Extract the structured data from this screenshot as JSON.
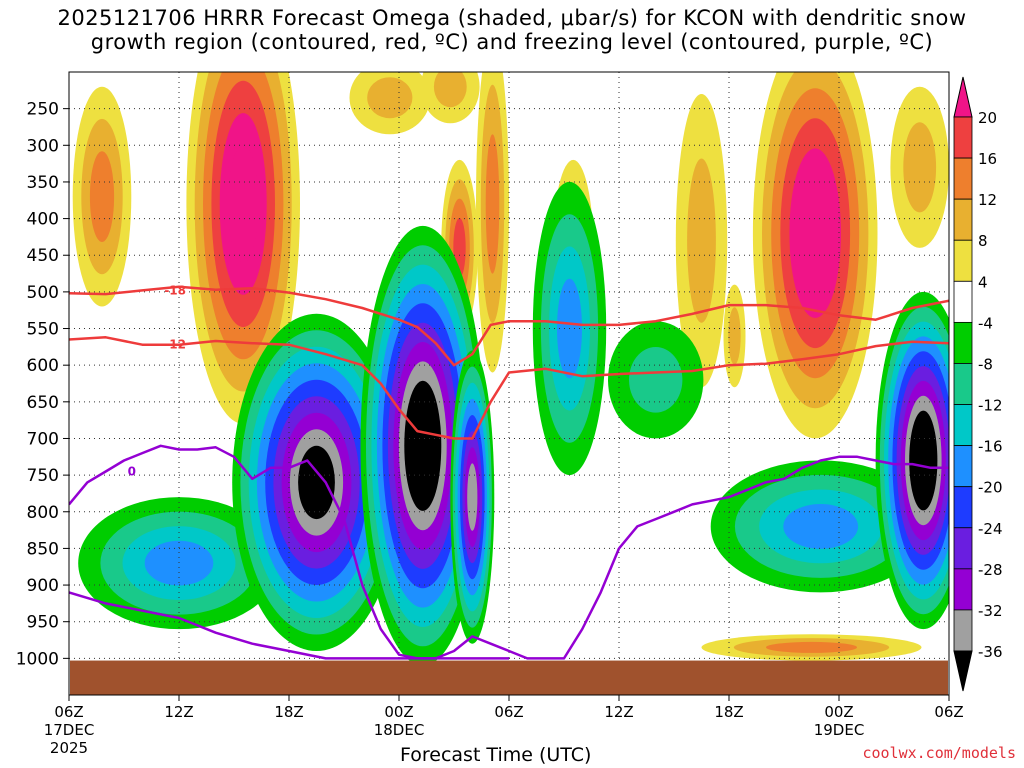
{
  "chart_data": {
    "type": "heatmap",
    "title_line1": "2025121706 HRRR Forecast Omega (shaded, μbar/s) for KCON with dendritic snow",
    "title_line2": "growth region (contoured, red, ºC) and freezing level (contoured, purple, ºC)",
    "xlabel": "Forecast Time (UTC)",
    "credit": "coolwx.com/models",
    "y_axis": {
      "variable": "pressure (hPa)",
      "range": [
        1050,
        200
      ],
      "ticks": [
        250,
        300,
        350,
        400,
        450,
        500,
        550,
        600,
        650,
        700,
        750,
        800,
        850,
        900,
        950,
        1000
      ]
    },
    "x_axis": {
      "range_hours": [
        0,
        48
      ],
      "ticks": [
        {
          "hour": 0,
          "label": "06Z",
          "sub1": "17DEC",
          "sub2": "2025"
        },
        {
          "hour": 6,
          "label": "12Z"
        },
        {
          "hour": 12,
          "label": "18Z"
        },
        {
          "hour": 18,
          "label": "00Z",
          "sub1": "18DEC"
        },
        {
          "hour": 24,
          "label": "06Z"
        },
        {
          "hour": 30,
          "label": "12Z"
        },
        {
          "hour": 36,
          "label": "18Z"
        },
        {
          "hour": 42,
          "label": "00Z",
          "sub1": "19DEC"
        },
        {
          "hour": 48,
          "label": "06Z"
        }
      ]
    },
    "colorbar": {
      "levels": [
        -36,
        -32,
        -28,
        -24,
        -20,
        -16,
        -12,
        -8,
        -4,
        4,
        8,
        12,
        16,
        20
      ],
      "labels": [
        "20",
        "16",
        "12",
        "8",
        "4",
        "-4",
        "-8",
        "-12",
        "-16",
        "-20",
        "-24",
        "-28",
        "-32",
        "-36"
      ],
      "colors": [
        "#000000",
        "#a0a0a0",
        "#9400d3",
        "#6a1ee0",
        "#1e3cff",
        "#1e90ff",
        "#00c8c8",
        "#19c98a",
        "#00cd00",
        "#ffffff",
        "#eee040",
        "#e8b030",
        "#ee7f2d",
        "#ee4040",
        "#f01488"
      ]
    },
    "omega_features": [
      {
        "label": "upward motion core",
        "center_hour": 19.3,
        "center_p": 725,
        "peak": -40
      },
      {
        "label": "upward motion core",
        "center_hour": 13.5,
        "center_p": 740,
        "peak": -38
      },
      {
        "label": "upward motion core",
        "center_hour": 46.9,
        "center_p": 730,
        "peak": -38
      },
      {
        "label": "subsidence max",
        "center_hour": 9.5,
        "center_p": 380,
        "peak": 24
      },
      {
        "label": "subsidence max",
        "center_hour": 40.5,
        "center_p": 410,
        "peak": 24
      }
    ],
    "contours": [
      {
        "name": "dendritic -18",
        "color": "#ee3b3b",
        "label": "-18",
        "hours": [
          0,
          2,
          4,
          6,
          8,
          10,
          12,
          14,
          16,
          18,
          19,
          20,
          21,
          22,
          23,
          24,
          26,
          28,
          30,
          32,
          34,
          36,
          38,
          40,
          42,
          44,
          46,
          48
        ],
        "pressures": [
          502,
          503,
          498,
          493,
          497,
          495,
          501,
          510,
          522,
          538,
          548,
          570,
          600,
          585,
          545,
          540,
          540,
          545,
          545,
          540,
          530,
          518,
          518,
          522,
          532,
          538,
          522,
          512
        ]
      },
      {
        "name": "dendritic -12",
        "color": "#ee3b3b",
        "label": "-12",
        "hours": [
          0,
          2,
          4,
          6,
          8,
          10,
          12,
          14,
          16,
          17,
          18,
          19,
          20,
          21,
          22,
          23,
          24,
          26,
          28,
          30,
          32,
          34,
          36,
          38,
          40,
          42,
          44,
          46,
          48
        ],
        "pressures": [
          565,
          562,
          572,
          572,
          567,
          570,
          572,
          585,
          600,
          625,
          660,
          690,
          695,
          700,
          700,
          650,
          610,
          605,
          615,
          612,
          610,
          608,
          600,
          598,
          592,
          585,
          574,
          568,
          570
        ]
      },
      {
        "name": "freezing level 0",
        "color": "#9400d3",
        "label": "0",
        "hours": [
          0,
          1,
          2,
          3,
          4,
          5,
          6,
          7,
          8,
          9,
          10,
          11,
          12,
          13,
          14,
          15,
          16,
          17,
          18,
          19,
          20,
          21,
          22,
          23,
          24,
          25,
          26,
          27,
          28,
          29,
          30,
          31,
          32,
          33,
          34,
          35,
          36,
          37,
          38,
          39,
          40,
          41,
          42,
          43,
          44,
          45,
          46,
          47,
          48
        ],
        "pressures": [
          790,
          760,
          745,
          730,
          720,
          710,
          715,
          715,
          712,
          725,
          755,
          740,
          740,
          730,
          760,
          810,
          900,
          960,
          995,
          1000,
          1000,
          990,
          970,
          980,
          990,
          1000,
          1000,
          1000,
          960,
          910,
          850,
          820,
          810,
          800,
          790,
          785,
          780,
          770,
          760,
          755,
          740,
          730,
          725,
          725,
          730,
          735,
          735,
          740,
          740
        ]
      },
      {
        "name": "freezing level 0 (lower)",
        "color": "#9400d3",
        "hours": [
          0,
          2,
          4,
          6,
          8,
          10,
          12,
          14,
          16,
          18,
          20,
          22,
          24
        ],
        "pressures": [
          910,
          925,
          935,
          945,
          965,
          980,
          990,
          1000,
          1000,
          1000,
          1000,
          1000,
          1000
        ]
      }
    ]
  }
}
